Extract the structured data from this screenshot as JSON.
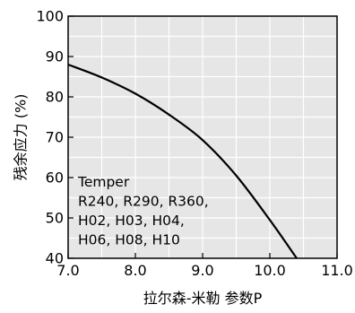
{
  "chart_data": {
    "type": "line",
    "xlabel": "拉尔森-米勒 参数P",
    "ylabel": "残余应力 (%)",
    "xlim": [
      7.0,
      11.0
    ],
    "ylim": [
      40,
      100
    ],
    "x_ticks": [
      "7.0",
      "8.0",
      "9.0",
      "10.0",
      "11.0"
    ],
    "y_ticks": [
      "100",
      "90",
      "80",
      "70",
      "60",
      "50",
      "40"
    ],
    "grid": true,
    "background": "#e6e6e6",
    "line_color": "#000000",
    "series": [
      {
        "x": [
          7.0,
          7.5,
          8.0,
          8.5,
          9.0,
          9.5,
          10.0,
          10.4
        ],
        "y": [
          88.0,
          84.8,
          80.8,
          75.6,
          69.3,
          60.5,
          49.5,
          40.0
        ]
      }
    ],
    "annotation": {
      "lines": [
        "Temper",
        "R240, R290, R360,",
        "H02, H03, H04,",
        "H06, H08, H10"
      ]
    }
  }
}
